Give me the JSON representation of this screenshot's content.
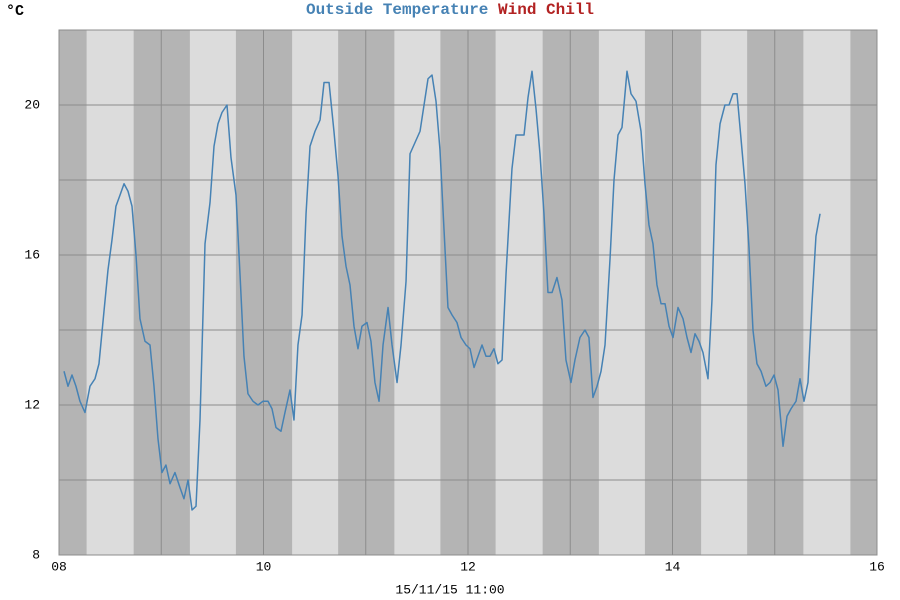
{
  "chart_data": {
    "type": "line",
    "title_parts": [
      "Outside Temperature",
      "Wind Chill"
    ],
    "y_unit": "°C",
    "x_label": "15/11/15 11:00",
    "xlim": [
      8,
      16
    ],
    "ylim": [
      8,
      22
    ],
    "xticks": [
      {
        "value": 8,
        "label": "08"
      },
      {
        "value": 10,
        "label": "10"
      },
      {
        "value": 12,
        "label": "12"
      },
      {
        "value": 14,
        "label": "14"
      },
      {
        "value": 16,
        "label": "16"
      }
    ],
    "x_minor_grid": [
      9,
      11,
      13,
      15
    ],
    "yticks": [
      8,
      12,
      16,
      20
    ],
    "y_minor_grid": [
      10,
      14,
      18
    ],
    "grid": true,
    "daylight": [
      [
        8.27,
        8.73
      ],
      [
        9.28,
        9.73
      ],
      [
        10.28,
        10.73
      ],
      [
        11.28,
        11.73
      ],
      [
        12.27,
        12.73
      ],
      [
        13.28,
        13.73
      ],
      [
        14.28,
        14.73
      ],
      [
        15.28,
        15.74
      ]
    ],
    "x": [
      8.049,
      8.088,
      8.127,
      8.166,
      8.205,
      8.254,
      8.303,
      8.352,
      8.391,
      8.44,
      8.479,
      8.518,
      8.557,
      8.597,
      8.636,
      8.675,
      8.714,
      8.753,
      8.792,
      8.841,
      8.89,
      8.929,
      8.968,
      9.007,
      9.046,
      9.086,
      9.134,
      9.183,
      9.222,
      9.262,
      9.301,
      9.34,
      9.379,
      9.428,
      9.477,
      9.516,
      9.555,
      9.594,
      9.643,
      9.682,
      9.731,
      9.77,
      9.809,
      9.848,
      9.897,
      9.946,
      9.995,
      10.044,
      10.083,
      10.122,
      10.171,
      10.21,
      10.259,
      10.298,
      10.337,
      10.377,
      10.416,
      10.455,
      10.504,
      10.553,
      10.592,
      10.641,
      10.689,
      10.729,
      10.768,
      10.807,
      10.846,
      10.885,
      10.924,
      10.963,
      11.012,
      11.051,
      11.09,
      11.13,
      11.169,
      11.218,
      11.257,
      11.306,
      11.345,
      11.394,
      11.433,
      11.482,
      11.531,
      11.57,
      11.609,
      11.648,
      11.687,
      11.726,
      11.765,
      11.804,
      11.844,
      11.892,
      11.932,
      11.98,
      12.02,
      12.059,
      12.098,
      12.137,
      12.176,
      12.215,
      12.254,
      12.293,
      12.333,
      12.372,
      12.43,
      12.469,
      12.509,
      12.548,
      12.587,
      12.626,
      12.665,
      12.704,
      12.743,
      12.782,
      12.822,
      12.87,
      12.919,
      12.958,
      13.007,
      13.046,
      13.095,
      13.144,
      13.183,
      13.222,
      13.262,
      13.301,
      13.34,
      13.389,
      13.428,
      13.467,
      13.506,
      13.555,
      13.594,
      13.643,
      13.692,
      13.731,
      13.77,
      13.809,
      13.848,
      13.888,
      13.927,
      13.966,
      14.005,
      14.054,
      14.103,
      14.142,
      14.181,
      14.22,
      14.259,
      14.298,
      14.347,
      14.386,
      14.425,
      14.465,
      14.513,
      14.553,
      14.592,
      14.631,
      14.67,
      14.709,
      14.748,
      14.787,
      14.826,
      14.866,
      14.914,
      14.954,
      14.993,
      15.032,
      15.081,
      15.12,
      15.159,
      15.208,
      15.247,
      15.286,
      15.325,
      15.364,
      15.403,
      15.443
    ],
    "series": [
      {
        "name": "Outside Temperature",
        "color": "#4682b4",
        "values": [
          12.9,
          12.5,
          12.8,
          12.5,
          12.1,
          11.8,
          12.5,
          12.7,
          13.1,
          14.5,
          15.6,
          16.4,
          17.3,
          17.6,
          17.9,
          17.7,
          17.3,
          16.0,
          14.3,
          13.7,
          13.6,
          12.5,
          11.1,
          10.2,
          10.4,
          9.9,
          10.2,
          9.8,
          9.5,
          10.0,
          9.2,
          9.3,
          11.6,
          16.3,
          17.4,
          18.9,
          19.5,
          19.8,
          20.0,
          18.6,
          17.6,
          15.5,
          13.3,
          12.3,
          12.1,
          12.0,
          12.1,
          12.1,
          11.9,
          11.4,
          11.3,
          11.8,
          12.4,
          11.6,
          13.6,
          14.4,
          17.1,
          18.9,
          19.3,
          19.6,
          20.6,
          20.6,
          19.3,
          18.1,
          16.5,
          15.7,
          15.2,
          14.1,
          13.5,
          14.1,
          14.2,
          13.7,
          12.6,
          12.1,
          13.6,
          14.6,
          13.6,
          12.6,
          13.6,
          15.3,
          18.7,
          19.0,
          19.3,
          20.0,
          20.7,
          20.8,
          20.1,
          18.8,
          16.7,
          14.6,
          14.4,
          14.2,
          13.8,
          13.6,
          13.5,
          13.0,
          13.3,
          13.6,
          13.3,
          13.3,
          13.5,
          13.1,
          13.2,
          15.5,
          18.3,
          19.2,
          19.2,
          19.2,
          20.2,
          20.9,
          19.9,
          18.7,
          17.1,
          15.0,
          15.0,
          15.4,
          14.8,
          13.2,
          12.6,
          13.2,
          13.8,
          14.0,
          13.8,
          12.2,
          12.5,
          12.9,
          13.6,
          15.9,
          18.0,
          19.2,
          19.4,
          20.9,
          20.3,
          20.1,
          19.3,
          17.9,
          16.8,
          16.3,
          15.2,
          14.7,
          14.7,
          14.1,
          13.8,
          14.6,
          14.3,
          13.8,
          13.4,
          13.9,
          13.7,
          13.4,
          12.7,
          14.8,
          18.4,
          19.5,
          20.0,
          20.0,
          20.3,
          20.3,
          19.1,
          17.9,
          16.2,
          14.0,
          13.1,
          12.9,
          12.5,
          12.6,
          12.8,
          12.4,
          10.9,
          11.7,
          11.9,
          12.1,
          12.7,
          12.1,
          12.6,
          14.7,
          16.5,
          17.1
        ]
      },
      {
        "name": "Wind Chill",
        "color": "#b22222",
        "values": [
          null,
          null,
          null,
          null,
          null,
          null,
          null,
          null,
          null,
          null,
          null,
          null,
          null,
          null,
          null,
          null,
          null,
          null,
          null,
          null,
          null,
          null,
          null,
          null,
          null,
          null,
          null,
          null,
          null,
          null,
          null,
          null,
          null,
          null,
          null,
          null,
          null,
          null,
          null,
          null,
          null,
          null,
          null,
          null,
          null,
          null,
          null,
          null,
          null,
          null,
          null,
          null,
          null,
          null,
          null,
          null,
          null,
          null,
          null,
          null,
          null,
          null,
          null,
          null,
          null,
          null,
          null,
          null,
          null,
          null,
          null,
          null,
          null,
          null,
          null,
          null,
          null,
          null,
          null,
          null,
          null,
          null,
          null,
          null,
          null,
          null,
          null,
          null,
          null,
          null,
          null,
          null,
          null,
          null,
          null,
          null,
          null,
          null,
          null,
          null,
          null,
          null,
          null,
          null,
          null,
          null,
          null,
          null,
          null,
          null,
          null,
          null,
          null,
          null,
          null,
          null,
          null,
          null,
          null,
          null,
          null,
          null,
          null,
          null,
          null,
          null,
          null,
          null,
          null,
          null,
          null,
          null,
          null,
          null,
          null,
          null,
          null,
          null,
          null,
          null,
          null,
          null,
          null,
          null,
          null,
          null,
          null,
          null,
          null,
          null,
          null,
          null,
          null,
          null,
          null,
          null,
          null,
          null,
          null,
          null,
          null,
          null,
          null,
          null,
          null,
          null,
          null,
          null,
          null,
          null,
          null,
          null,
          null,
          null,
          null,
          null,
          null,
          null
        ]
      }
    ]
  }
}
